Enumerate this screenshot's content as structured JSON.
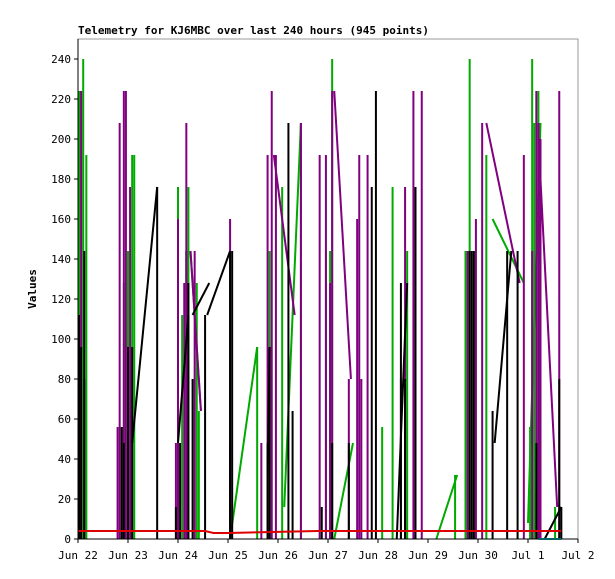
{
  "chart_data": {
    "type": "line",
    "title": "Telemetry for KJ6MBC over last 240 hours (945 points)",
    "xlabel": "",
    "ylabel": "Values",
    "ylim": [
      0,
      250
    ],
    "xlim": [
      0,
      240
    ],
    "grid": false,
    "legend": "none",
    "x_ticks": [
      {
        "label": "Jun 22",
        "value": 0
      },
      {
        "label": "Jun 23",
        "value": 24
      },
      {
        "label": "Jun 24",
        "value": 48
      },
      {
        "label": "Jun 25",
        "value": 72
      },
      {
        "label": "Jun 26",
        "value": 96
      },
      {
        "label": "Jun 27",
        "value": 120
      },
      {
        "label": "Jun 28",
        "value": 144
      },
      {
        "label": "Jun 29",
        "value": 168
      },
      {
        "label": "Jun 30",
        "value": 192
      },
      {
        "label": "Jul 1",
        "value": 216
      },
      {
        "label": "Jul 2",
        "value": 240
      }
    ],
    "y_ticks": [
      0,
      20,
      40,
      60,
      80,
      100,
      120,
      140,
      160,
      180,
      200,
      220,
      240
    ],
    "series": [
      {
        "color": "#00aa00",
        "spikes": [
          [
            0.5,
            224
          ],
          [
            1.5,
            224
          ],
          [
            2.5,
            240
          ],
          [
            4,
            192
          ],
          [
            21,
            56
          ],
          [
            22,
            128
          ],
          [
            24,
            144
          ],
          [
            26,
            192
          ],
          [
            27,
            192
          ],
          [
            48,
            176
          ],
          [
            50,
            112
          ],
          [
            52,
            144
          ],
          [
            53,
            176
          ],
          [
            57,
            128
          ],
          [
            58,
            64
          ],
          [
            72,
            0
          ],
          [
            86,
            96
          ],
          [
            92,
            144
          ],
          [
            98,
            176
          ],
          [
            107,
            208
          ],
          [
            119,
            144
          ],
          [
            121,
            144
          ],
          [
            122,
            240
          ],
          [
            142,
            0
          ],
          [
            146,
            56
          ],
          [
            151,
            176
          ],
          [
            158,
            144
          ],
          [
            171,
            0
          ],
          [
            181,
            32
          ],
          [
            186,
            144
          ],
          [
            188,
            240
          ],
          [
            190,
            144
          ],
          [
            196,
            192
          ],
          [
            212,
            0
          ],
          [
            217,
            56
          ],
          [
            218,
            240
          ],
          [
            219,
            208
          ],
          [
            221,
            224
          ],
          [
            221,
            208
          ],
          [
            229,
            16
          ]
        ],
        "segments": [
          [
            [
              54,
              144
            ],
            [
              59,
              64
            ]
          ],
          [
            [
              73,
              0
            ],
            [
              86,
              96
            ]
          ],
          [
            [
              99,
              16
            ],
            [
              107,
              208
            ]
          ],
          [
            [
              123,
              0
            ],
            [
              132,
              48
            ]
          ],
          [
            [
              172,
              0
            ],
            [
              182,
              32
            ]
          ],
          [
            [
              199,
              160
            ],
            [
              214,
              128
            ]
          ],
          [
            [
              216,
              8
            ],
            [
              222,
              208
            ]
          ]
        ]
      },
      {
        "color": "#800080",
        "spikes": [
          [
            1.5,
            224
          ],
          [
            3,
            80
          ],
          [
            19,
            56
          ],
          [
            20,
            208
          ],
          [
            22,
            224
          ],
          [
            23,
            224
          ],
          [
            25,
            176
          ],
          [
            47,
            48
          ],
          [
            48,
            160
          ],
          [
            51,
            128
          ],
          [
            52,
            144
          ],
          [
            52,
            208
          ],
          [
            56,
            144
          ],
          [
            73,
            48
          ],
          [
            73,
            160
          ],
          [
            88,
            48
          ],
          [
            91,
            192
          ],
          [
            93,
            224
          ],
          [
            95,
            192
          ],
          [
            107,
            208
          ],
          [
            116,
            192
          ],
          [
            119,
            192
          ],
          [
            121,
            128
          ],
          [
            122,
            224
          ],
          [
            130,
            80
          ],
          [
            134,
            160
          ],
          [
            135,
            192
          ],
          [
            136,
            80
          ],
          [
            139,
            192
          ],
          [
            155,
            80
          ],
          [
            157,
            176
          ],
          [
            161,
            224
          ],
          [
            162,
            144
          ],
          [
            165,
            224
          ],
          [
            187,
            144
          ],
          [
            191,
            160
          ],
          [
            194,
            208
          ],
          [
            214,
            192
          ],
          [
            218,
            144
          ],
          [
            220,
            224
          ],
          [
            221,
            208
          ],
          [
            222,
            200
          ],
          [
            231,
            224
          ]
        ],
        "segments": [
          [
            [
              54,
              144
            ],
            [
              59,
              64
            ]
          ],
          [
            [
              94,
              192
            ],
            [
              104,
              112
            ]
          ],
          [
            [
              123,
              224
            ],
            [
              131,
              80
            ]
          ],
          [
            [
              196,
              208
            ],
            [
              212,
              128
            ]
          ],
          [
            [
              221,
              200
            ],
            [
              230,
              16
            ]
          ]
        ]
      },
      {
        "color": "#000000",
        "spikes": [
          [
            0.5,
            112
          ],
          [
            1.5,
            96
          ],
          [
            3,
            144
          ],
          [
            21,
            56
          ],
          [
            22,
            48
          ],
          [
            24,
            96
          ],
          [
            26,
            96
          ],
          [
            38,
            176
          ],
          [
            43,
            0
          ],
          [
            47,
            16
          ],
          [
            49,
            48
          ],
          [
            53,
            128
          ],
          [
            55,
            80
          ],
          [
            61,
            112
          ],
          [
            73,
            144
          ],
          [
            74,
            144
          ],
          [
            91,
            48
          ],
          [
            92,
            96
          ],
          [
            101,
            208
          ],
          [
            103,
            64
          ],
          [
            117,
            16
          ],
          [
            122,
            48
          ],
          [
            130,
            48
          ],
          [
            137,
            0
          ],
          [
            138,
            0
          ],
          [
            141,
            176
          ],
          [
            143,
            224
          ],
          [
            155,
            128
          ],
          [
            157,
            80
          ],
          [
            160,
            0
          ],
          [
            162,
            176
          ],
          [
            188,
            144
          ],
          [
            189,
            144
          ],
          [
            190,
            144
          ],
          [
            199,
            64
          ],
          [
            206,
            144
          ],
          [
            211,
            144
          ],
          [
            220,
            48
          ],
          [
            231,
            80
          ],
          [
            232,
            16
          ]
        ],
        "segments": [
          [
            [
              26,
              48
            ],
            [
              38,
              176
            ]
          ],
          [
            [
              48,
              48
            ],
            [
              53,
              112
            ]
          ],
          [
            [
              55,
              112
            ],
            [
              63,
              128
            ]
          ],
          [
            [
              62,
              112
            ],
            [
              73,
              144
            ]
          ],
          [
            [
              91,
              32
            ],
            [
              92,
              96
            ]
          ],
          [
            [
              153,
              0
            ],
            [
              158,
              128
            ]
          ],
          [
            [
              200,
              48
            ],
            [
              208,
              144
            ]
          ],
          [
            [
              224,
              0
            ],
            [
              232,
              16
            ]
          ]
        ]
      },
      {
        "color": "#dd0000",
        "points": [
          [
            0,
            4
          ],
          [
            61,
            4
          ],
          [
            65,
            3
          ],
          [
            70,
            3
          ],
          [
            72,
            3
          ],
          [
            115,
            4
          ],
          [
            120,
            4
          ],
          [
            140,
            4
          ],
          [
            160,
            4
          ],
          [
            180,
            4
          ],
          [
            200,
            4
          ],
          [
            220,
            4
          ],
          [
            232,
            4
          ]
        ]
      },
      {
        "color": "#00cccc",
        "points": [
          [
            221,
            0
          ],
          [
            232,
            0
          ]
        ]
      }
    ]
  },
  "layout_defaults": {}
}
